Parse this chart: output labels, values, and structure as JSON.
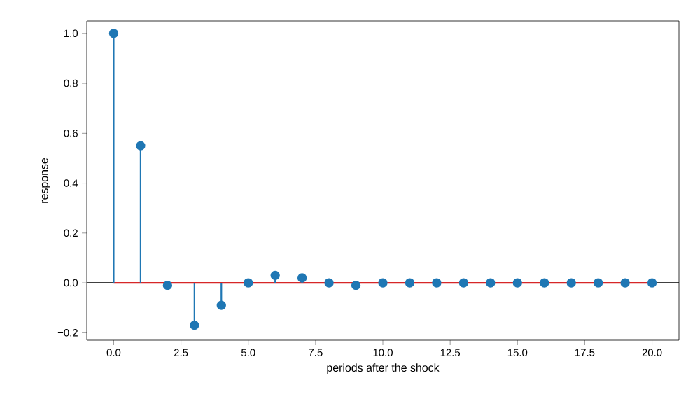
{
  "chart_data": {
    "type": "lollipop",
    "xlabel": "periods after the shock",
    "ylabel": "response",
    "series": [
      {
        "type": "line",
        "x": [
          0,
          20
        ],
        "values": [
          0,
          0
        ],
        "color": "#d62728",
        "marker": "none"
      },
      {
        "x": [
          0,
          1,
          2,
          3,
          4,
          5,
          6,
          7,
          8,
          9,
          10,
          11,
          12,
          13,
          14,
          15,
          16,
          17,
          18,
          19,
          20
        ],
        "values": [
          1.0,
          0.55,
          -0.01,
          -0.17,
          -0.09,
          0.0,
          0.03,
          0.02,
          0.0,
          -0.01,
          0.0,
          0.0,
          0.0,
          0.0,
          0.0,
          0.0,
          0.0,
          0.0,
          0.0,
          0.0,
          0.0
        ],
        "color": "#1f77b4",
        "marker": "circle"
      }
    ],
    "grid": false,
    "xlim": [
      -1,
      21
    ],
    "ylim": [
      -0.23,
      1.05
    ],
    "xticks": [
      {
        "value": 0,
        "label": "0.0"
      },
      {
        "value": 2.5,
        "label": "2.5"
      },
      {
        "value": 5,
        "label": "5.0"
      },
      {
        "value": 7.5,
        "label": "7.5"
      },
      {
        "value": 10,
        "label": "10.0"
      },
      {
        "value": 12.5,
        "label": "12.5"
      },
      {
        "value": 15,
        "label": "15.0"
      },
      {
        "value": 17.5,
        "label": "17.5"
      },
      {
        "value": 20,
        "label": "20.0"
      }
    ],
    "yticks": [
      {
        "value": -0.2,
        "label": "−0.2"
      },
      {
        "value": 0,
        "label": "0.0"
      },
      {
        "value": 0.2,
        "label": "0.2"
      },
      {
        "value": 0.4,
        "label": "0.4"
      },
      {
        "value": 0.6,
        "label": "0.6"
      },
      {
        "value": 0.8,
        "label": "0.8"
      },
      {
        "value": 1.0,
        "label": "1.0"
      }
    ],
    "ref_lines": [
      {
        "axis": "y",
        "value": 0,
        "color": "#000000"
      }
    ]
  }
}
